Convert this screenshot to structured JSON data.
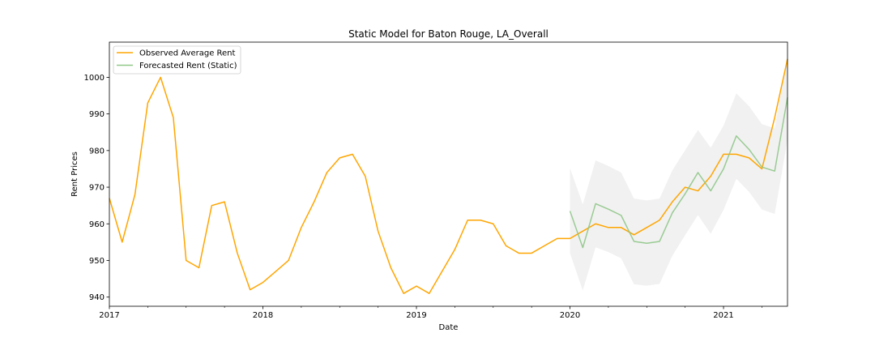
{
  "chart_data": {
    "type": "line",
    "title": "Static Model for Baton Rouge, LA_Overall",
    "xlabel": "Date",
    "ylabel": "Rent Prices",
    "xlim": [
      "2017-01",
      "2021-06"
    ],
    "ylim": [
      937.5,
      1009.6
    ],
    "yticks": [
      940,
      950,
      960,
      970,
      980,
      990,
      1000
    ],
    "xticks": [
      {
        "date": "2017-01",
        "label": "2017"
      },
      {
        "date": "2018-01",
        "label": "2018"
      },
      {
        "date": "2019-01",
        "label": "2019"
      },
      {
        "date": "2020-01",
        "label": "2020"
      },
      {
        "date": "2021-01",
        "label": "2021"
      }
    ],
    "legend_position": "top-left",
    "grid": false,
    "series": [
      {
        "name": "Observed Average Rent",
        "color": "#FFA500",
        "x": [
          "2017-01",
          "2017-02",
          "2017-03",
          "2017-04",
          "2017-05",
          "2017-06",
          "2017-07",
          "2017-08",
          "2017-09",
          "2017-10",
          "2017-11",
          "2017-12",
          "2018-01",
          "2018-02",
          "2018-03",
          "2018-04",
          "2018-05",
          "2018-06",
          "2018-07",
          "2018-08",
          "2018-09",
          "2018-10",
          "2018-11",
          "2018-12",
          "2019-01",
          "2019-02",
          "2019-03",
          "2019-04",
          "2019-05",
          "2019-06",
          "2019-07",
          "2019-08",
          "2019-09",
          "2019-10",
          "2019-11",
          "2019-12",
          "2020-01",
          "2020-02",
          "2020-03",
          "2020-04",
          "2020-05",
          "2020-06",
          "2020-07",
          "2020-08",
          "2020-09",
          "2020-10",
          "2020-11",
          "2020-12",
          "2021-01",
          "2021-02",
          "2021-03",
          "2021-04",
          "2021-05",
          "2021-06"
        ],
        "values": [
          967,
          955,
          968,
          993,
          1000,
          989,
          950,
          948,
          965,
          966,
          952,
          942,
          944,
          947,
          950,
          959,
          966,
          974,
          978,
          979,
          973,
          958,
          948,
          941,
          943,
          941,
          947,
          953,
          961,
          961,
          960,
          954,
          952,
          952,
          954,
          956,
          956,
          958,
          960,
          959,
          959,
          957,
          959,
          961,
          966,
          970,
          969,
          973,
          979,
          979,
          978,
          975,
          989,
          1005
        ]
      },
      {
        "name": "Forecasted Rent (Static)",
        "color": "#8FC788",
        "x": [
          "2020-01",
          "2020-02",
          "2020-03",
          "2020-04",
          "2020-05",
          "2020-06",
          "2020-07",
          "2020-08",
          "2020-09",
          "2020-10",
          "2020-11",
          "2020-12",
          "2021-01",
          "2021-02",
          "2021-03",
          "2021-04",
          "2021-05",
          "2021-06"
        ],
        "values": [
          963.5,
          953.5,
          965.5,
          964,
          962.3,
          955.2,
          954.7,
          955.2,
          963,
          968.2,
          974,
          969,
          975,
          984,
          980.3,
          975.5,
          974.4,
          994.5
        ],
        "lower": [
          952,
          941.8,
          953.6,
          952.3,
          950.6,
          943.5,
          943.1,
          943.6,
          951.3,
          956.9,
          962.4,
          957.3,
          963.8,
          972.3,
          968.7,
          963.9,
          962.7,
          983
        ],
        "upper": [
          975.2,
          965.3,
          977.3,
          975.8,
          974,
          966.9,
          966.4,
          966.9,
          974.6,
          980.1,
          985.6,
          980.8,
          986.8,
          995.6,
          992.1,
          987.2,
          986.1,
          1006
        ]
      }
    ]
  }
}
